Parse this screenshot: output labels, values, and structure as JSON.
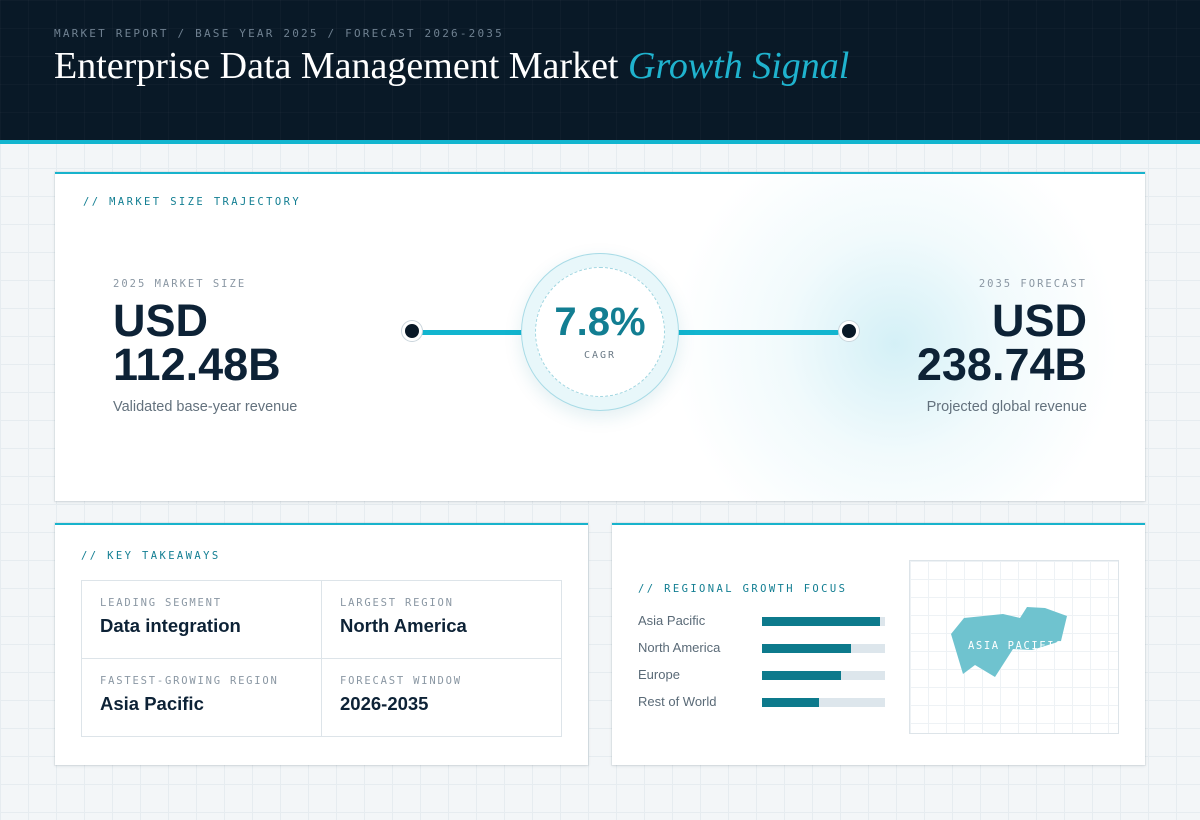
{
  "header": {
    "eyebrow": "MARKET REPORT / BASE YEAR 2025 / FORECAST 2026-2035",
    "title_main": "Enterprise Data Management Market",
    "title_accent": "Growth Signal"
  },
  "trajectory": {
    "section_label": "// MARKET SIZE TRAJECTORY",
    "base": {
      "label": "2025 MARKET SIZE",
      "currency": "USD",
      "value": "112.48B",
      "caption": "Validated base-year revenue"
    },
    "cagr": {
      "value": "7.8%",
      "label": "CAGR"
    },
    "forecast": {
      "label": "2035 FORECAST",
      "currency": "USD",
      "value": "238.74B",
      "caption": "Projected global revenue"
    }
  },
  "takeaways": {
    "section_label": "// KEY TAKEAWAYS",
    "items": [
      {
        "label": "LEADING SEGMENT",
        "value": "Data integration"
      },
      {
        "label": "LARGEST REGION",
        "value": "North America"
      },
      {
        "label": "FASTEST-GROWING REGION",
        "value": "Asia Pacific"
      },
      {
        "label": "FORECAST WINDOW",
        "value": "2026-2035"
      }
    ]
  },
  "regional": {
    "section_label": "// REGIONAL GROWTH FOCUS",
    "bars": [
      {
        "name": "Asia Pacific",
        "level": 0.96
      },
      {
        "name": "North America",
        "level": 0.72
      },
      {
        "name": "Europe",
        "level": 0.64
      },
      {
        "name": "Rest of World",
        "level": 0.46
      }
    ],
    "map_label": "ASIA PACIFIC",
    "colors": {
      "bar": "#0d7a8c",
      "track": "#dde6ec",
      "map_shape": "#6fc3cf"
    }
  }
}
